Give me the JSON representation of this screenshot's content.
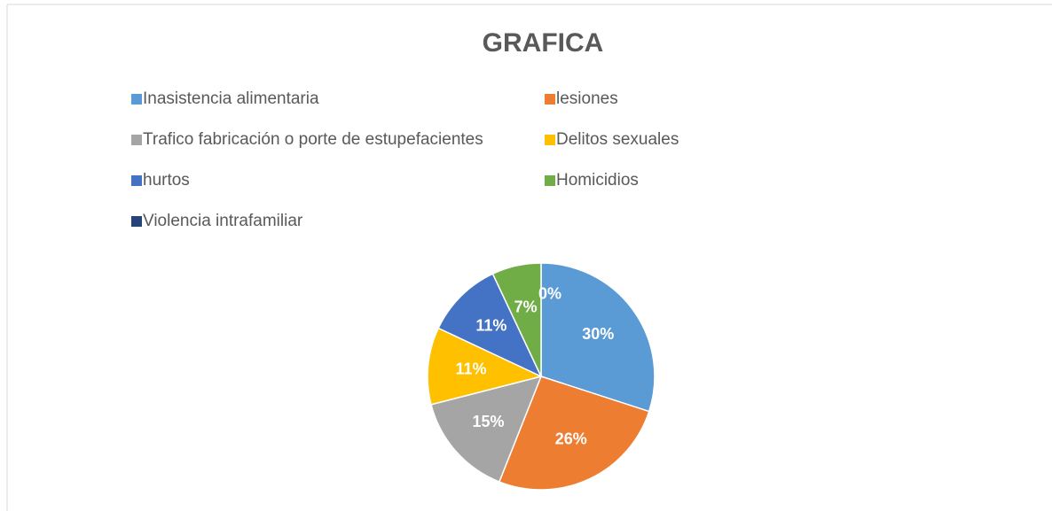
{
  "chart_data": {
    "type": "pie",
    "title": "GRAFICA",
    "categories": [
      "Inasistencia alimentaria",
      "lesiones",
      "Trafico fabricación o porte de estupefacientes",
      "Delitos sexuales",
      "hurtos",
      "Homicidios",
      "Violencia intrafamiliar"
    ],
    "values": [
      30,
      26,
      15,
      11,
      11,
      7,
      0
    ],
    "value_labels": [
      "30%",
      "26%",
      "15%",
      "11%",
      "11%",
      "7%",
      "0%"
    ],
    "colors": [
      "#5b9bd5",
      "#ed7d31",
      "#a5a5a5",
      "#ffc000",
      "#4472c4",
      "#70ad47",
      "#264478"
    ],
    "legend": "top"
  }
}
